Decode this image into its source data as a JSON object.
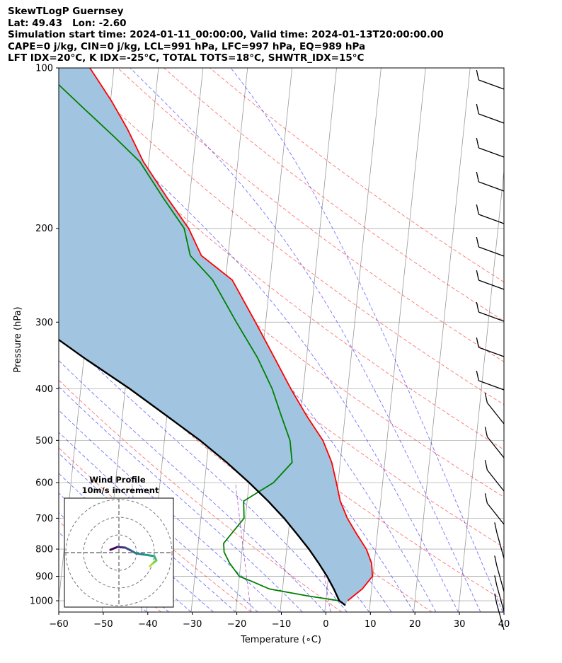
{
  "header": {
    "lines": [
      "SkewTLogP Guernsey",
      "Lat: 49.43   Lon: -2.60",
      "Simulation start time: 2024-01-11_00:00:00, Valid time: 2024-01-13T20:00:00.00",
      "CAPE=0 j/kg, CIN=0 j/kg, LCL=991 hPa, LFC=997 hPa, EQ=989 hPa",
      "LFT IDX=20°C, K IDX=-25°C, TOTAL TOTS=18°C, SHWTR_IDX=15°C"
    ]
  },
  "chart_data": {
    "type": "line",
    "title": "SkewTLogP Guernsey",
    "xlabel": "Temperature (∘C)",
    "ylabel": "Pressure (hPa)",
    "xlim": [
      -60,
      40
    ],
    "ylim": [
      1050,
      100
    ],
    "y_scale": "log",
    "x_ticks": [
      -60,
      -50,
      -40,
      -30,
      -20,
      -10,
      0,
      10,
      20,
      30,
      40
    ],
    "y_ticks": [
      1000,
      900,
      800,
      700,
      600,
      500,
      400,
      300,
      200,
      100
    ],
    "grid": true,
    "colors": {
      "temperature": "#ff0000",
      "dewpoint": "#008000",
      "parcel": "#000000",
      "shading": "#a1c5e0",
      "dry_adiabats": "#ff0000",
      "moist_adiabats": "#0000ff",
      "mixing_ratio": "#8000c0",
      "isotherms": "#999999"
    },
    "series": [
      {
        "key": "temperature",
        "points": [
          [
            4.9,
            1000
          ],
          [
            7.9,
            950
          ],
          [
            9.9,
            900
          ],
          [
            9.4,
            850
          ],
          [
            7.9,
            800
          ],
          [
            5.4,
            750
          ],
          [
            2.9,
            700
          ],
          [
            0.9,
            650
          ],
          [
            -0.4,
            600
          ],
          [
            -1.9,
            550
          ],
          [
            -4.4,
            500
          ],
          [
            -8.6,
            450
          ],
          [
            -12.8,
            400
          ],
          [
            -17.2,
            350
          ],
          [
            -22.3,
            300
          ],
          [
            -28.5,
            250
          ],
          [
            -36.0,
            225
          ],
          [
            -39.5,
            200
          ],
          [
            -45.1,
            175
          ],
          [
            -51.2,
            150
          ],
          [
            -55.6,
            130
          ],
          [
            -59.9,
            115
          ],
          [
            -65.4,
            100
          ]
        ]
      },
      {
        "key": "dewpoint",
        "points": [
          [
            3.0,
            1000
          ],
          [
            -4.0,
            980
          ],
          [
            -13.0,
            950
          ],
          [
            -17.0,
            920
          ],
          [
            -20.0,
            900
          ],
          [
            -22.5,
            850
          ],
          [
            -24.0,
            810
          ],
          [
            -24.3,
            780
          ],
          [
            -20.3,
            700
          ],
          [
            -20.8,
            650
          ],
          [
            -14.5,
            600
          ],
          [
            -10.8,
            550
          ],
          [
            -11.8,
            500
          ],
          [
            -14.3,
            450
          ],
          [
            -17.0,
            400
          ],
          [
            -21.0,
            350
          ],
          [
            -26.6,
            300
          ],
          [
            -32.9,
            250
          ],
          [
            -38.5,
            225
          ],
          [
            -40.5,
            200
          ],
          [
            -46.0,
            175
          ],
          [
            -52.0,
            150
          ],
          [
            -58.2,
            135
          ],
          [
            -65.4,
            120
          ],
          [
            -76.4,
            100
          ]
        ]
      },
      {
        "key": "parcel",
        "points": [
          [
            4.5,
            1020
          ],
          [
            3.0,
            1000
          ],
          [
            1.5,
            950
          ],
          [
            -0.3,
            900
          ],
          [
            -2.5,
            850
          ],
          [
            -5.0,
            800
          ],
          [
            -8.0,
            750
          ],
          [
            -11.3,
            700
          ],
          [
            -15.3,
            650
          ],
          [
            -20.0,
            600
          ],
          [
            -25.5,
            550
          ],
          [
            -32.0,
            500
          ],
          [
            -40.0,
            450
          ],
          [
            -49.0,
            400
          ],
          [
            -60.0,
            350
          ],
          [
            -72.0,
            300
          ],
          [
            -87.0,
            250
          ],
          [
            -98.0,
            200
          ],
          [
            -111.0,
            150
          ],
          [
            -126.5,
            100
          ]
        ]
      }
    ],
    "wind_profile": {
      "title": "Wind Profile",
      "subtitle": "10m/s increment"
    }
  }
}
